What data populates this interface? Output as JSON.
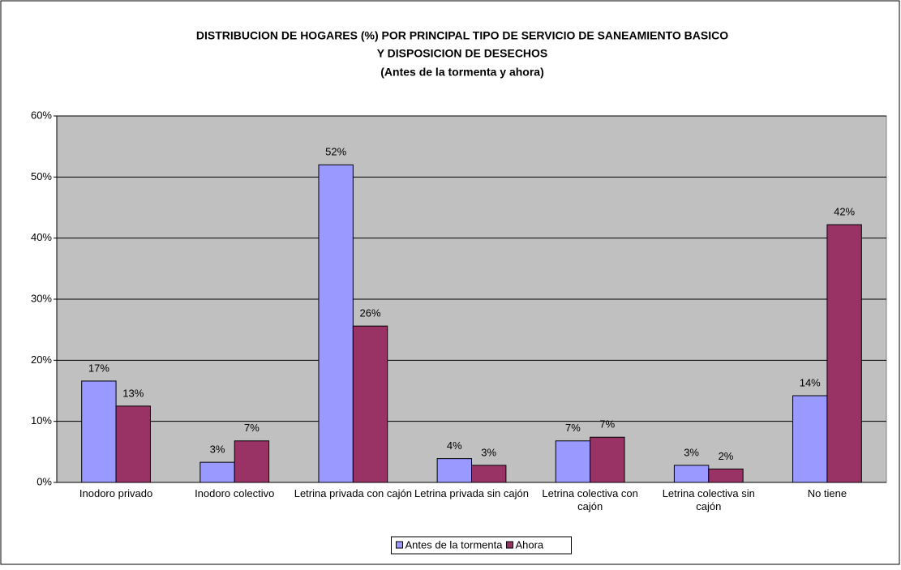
{
  "chart_data": {
    "type": "bar",
    "title": [
      "DISTRIBUCION DE HOGARES  (%) POR PRINCIPAL  TIPO DE SERVICIO DE SANEAMIENTO BASICO",
      "Y DISPOSICION DE DESECHOS",
      "(Antes de la tormenta y ahora)"
    ],
    "categories": [
      "Inodoro privado",
      "Inodoro colectivo",
      "Letrina privada con cajón",
      "Letrina privada sin cajón",
      "Letrina colectiva con cajón",
      "Letrina colectiva sin cajón",
      "No tiene"
    ],
    "series": [
      {
        "name": "Antes de la tormenta",
        "color": "#9999ff",
        "values": [
          16.6,
          3.3,
          52,
          3.9,
          6.8,
          2.8,
          14.2
        ],
        "value_labels": [
          "17%",
          "3%",
          "52%",
          "4%",
          "7%",
          "3%",
          "14%"
        ]
      },
      {
        "name": "Ahora",
        "color": "#993366",
        "values": [
          12.5,
          6.8,
          25.6,
          2.8,
          7.4,
          2.2,
          42.2
        ],
        "value_labels": [
          "13%",
          "7%",
          "26%",
          "3%",
          "7%",
          "2%",
          "42%"
        ]
      }
    ],
    "ylim": [
      0,
      60
    ],
    "yticks": [
      {
        "value": 0,
        "label": "0%"
      },
      {
        "value": 10,
        "label": "10%"
      },
      {
        "value": 20,
        "label": "20%"
      },
      {
        "value": 30,
        "label": "30%"
      },
      {
        "value": 40,
        "label": "40%"
      },
      {
        "value": 50,
        "label": "50%"
      },
      {
        "value": 60,
        "label": "60%"
      }
    ],
    "grid": true,
    "legend": "bottom"
  }
}
